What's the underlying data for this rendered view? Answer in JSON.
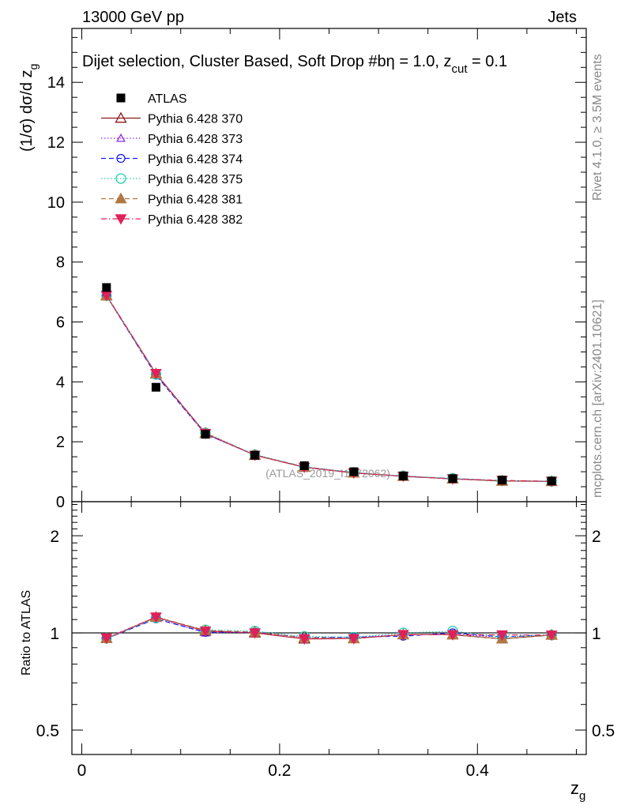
{
  "header": {
    "energy": "13000 GeV pp",
    "category": "Jets"
  },
  "side_labels": {
    "rivet": "Rivet 4.1.0, ≥ 3.5M events",
    "mcplots": "mcplots.cern.ch [arXiv:2401.10621]"
  },
  "chart_data": [
    {
      "type": "scatter",
      "title": "Dijet selection, Cluster Based, Soft Drop #b",
      "title_suffix": "η = 1.0, z",
      "title_sub": "cut",
      "title_tail": " = 0.1",
      "ylabel": "(1/σ) dσ/d z",
      "ylabel_sub": "g",
      "watermark": "(ATLAS_2019_I1772062)",
      "xlim": [
        -0.01,
        0.51
      ],
      "ylim": [
        0,
        15.8
      ],
      "yticks": [
        0,
        2,
        4,
        6,
        8,
        10,
        12,
        14
      ],
      "ytick_labels": [
        "0",
        "2",
        "4",
        "6",
        "8",
        "10",
        "12",
        "14"
      ],
      "x": [
        0.025,
        0.075,
        0.125,
        0.175,
        0.225,
        0.275,
        0.325,
        0.375,
        0.425,
        0.475
      ],
      "data": {
        "name": "ATLAS",
        "values": [
          7.15,
          3.82,
          2.25,
          1.55,
          1.2,
          1.0,
          0.86,
          0.77,
          0.72,
          0.69
        ]
      },
      "series": [
        {
          "name": "Pythia 6.428 370",
          "color": "#8b1a1a",
          "marker": "triangle-open",
          "dash": "solid",
          "values": [
            6.88,
            4.27,
            2.28,
            1.55,
            1.15,
            0.96,
            0.85,
            0.76,
            0.69,
            0.68
          ]
        },
        {
          "name": "Pythia 6.428 373",
          "color": "#8a2be2",
          "marker": "triangle-open-small",
          "dash": "dotted",
          "values": [
            6.86,
            4.24,
            2.25,
            1.56,
            1.16,
            0.97,
            0.85,
            0.76,
            0.7,
            0.68
          ]
        },
        {
          "name": "Pythia 6.428 374",
          "color": "#1a1aee",
          "marker": "circle-open",
          "dash": "dashed",
          "values": [
            6.87,
            4.22,
            2.26,
            1.56,
            1.16,
            0.97,
            0.84,
            0.77,
            0.7,
            0.68
          ]
        },
        {
          "name": "Pythia 6.428 375",
          "color": "#20d0b0",
          "marker": "circle-open-large",
          "dash": "dotted",
          "values": [
            6.88,
            4.25,
            2.3,
            1.57,
            1.17,
            0.97,
            0.86,
            0.78,
            0.7,
            0.68
          ]
        },
        {
          "name": "Pythia 6.428 381",
          "color": "#b07840",
          "marker": "triangle-filled",
          "dash": "dashed",
          "values": [
            6.87,
            4.28,
            2.29,
            1.56,
            1.16,
            0.96,
            0.85,
            0.76,
            0.69,
            0.68
          ]
        },
        {
          "name": "Pythia 6.428 382",
          "color": "#e0205a",
          "marker": "triangle-down-filled",
          "dash": "dashdot",
          "values": [
            6.89,
            4.28,
            2.28,
            1.55,
            1.15,
            0.96,
            0.85,
            0.76,
            0.71,
            0.68
          ]
        }
      ]
    },
    {
      "type": "scatter",
      "ylabel": "Ratio to ATLAS",
      "xlabel": "z",
      "xlabel_sub": "g",
      "xlim": [
        -0.01,
        0.51
      ],
      "ylim": [
        0.42,
        2.55
      ],
      "log_y": true,
      "xticks": [
        0,
        0.2,
        0.4
      ],
      "xtick_labels": [
        "0",
        "0.2",
        "0.4"
      ],
      "yticks": [
        0.5,
        1,
        2
      ],
      "ytick_labels": [
        "0.5",
        "1",
        "2"
      ],
      "x": [
        0.025,
        0.075,
        0.125,
        0.175,
        0.225,
        0.275,
        0.325,
        0.375,
        0.425,
        0.475
      ],
      "series": [
        {
          "name": "Pythia 6.428 370",
          "values": [
            0.962,
            1.118,
            1.013,
            1.0,
            0.958,
            0.96,
            0.988,
            0.987,
            0.958,
            0.985
          ]
        },
        {
          "name": "Pythia 6.428 373",
          "values": [
            0.959,
            1.11,
            1.0,
            1.006,
            0.967,
            0.97,
            0.988,
            0.987,
            0.972,
            0.985
          ]
        },
        {
          "name": "Pythia 6.428 374",
          "values": [
            0.961,
            1.105,
            1.004,
            1.006,
            0.967,
            0.97,
            0.977,
            1.0,
            0.972,
            0.985
          ]
        },
        {
          "name": "Pythia 6.428 375",
          "values": [
            0.962,
            1.113,
            1.022,
            1.013,
            0.975,
            0.97,
            1.0,
            1.013,
            0.972,
            0.985
          ]
        },
        {
          "name": "Pythia 6.428 381",
          "values": [
            0.961,
            1.12,
            1.018,
            1.006,
            0.967,
            0.96,
            0.988,
            0.987,
            0.958,
            0.985
          ]
        },
        {
          "name": "Pythia 6.428 382",
          "values": [
            0.964,
            1.12,
            1.013,
            1.0,
            0.958,
            0.96,
            0.988,
            0.987,
            0.986,
            0.985
          ]
        }
      ]
    }
  ]
}
